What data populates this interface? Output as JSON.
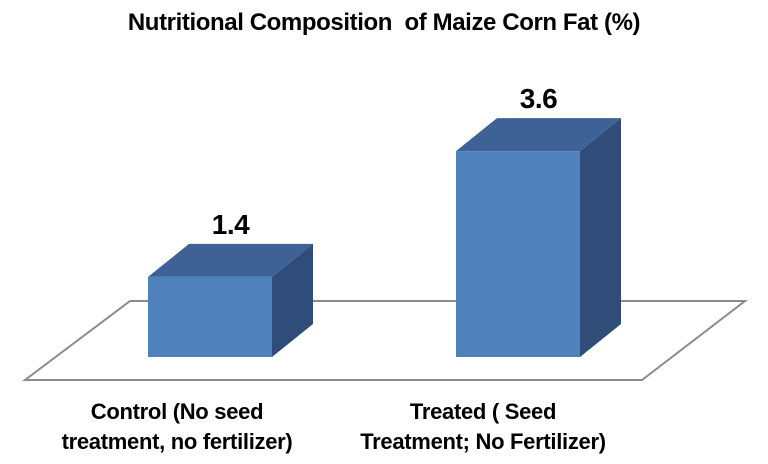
{
  "chart_data": {
    "type": "bar",
    "projection": "3d",
    "title": "Nutritional Composition  of Maize Corn Fat (%)",
    "categories": [
      "Control (No seed treatment, no fertilizer)",
      "Treated ( Seed Treatment; No Fertilizer)"
    ],
    "category_display_lines": [
      "Control (No seed\ntreatment, no fertilizer)",
      "Treated ( Seed\nTreatment; No Fertilizer)"
    ],
    "values": [
      1.4,
      3.6
    ],
    "data_labels": [
      "1.4",
      "3.6"
    ],
    "xlabel": "",
    "ylabel": "",
    "legend": "none",
    "gridlines": "none",
    "value_axis_visible": false,
    "colors": {
      "bar_front": "#4f81bd",
      "bar_top": "#3e6295",
      "bar_side": "#2f4d78",
      "floor_outline": "#8b8b8b",
      "text": "#000000",
      "background": "#ffffff"
    }
  }
}
